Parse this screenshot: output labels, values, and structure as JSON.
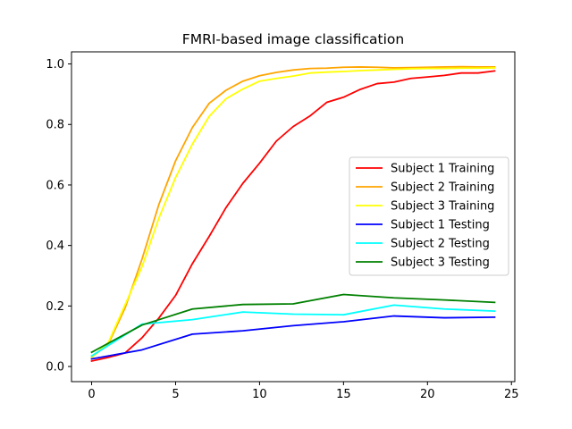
{
  "chart_data": {
    "type": "line",
    "title": "FMRI-based image classification",
    "xlabel": "",
    "ylabel": "",
    "xlim": [
      -1.2,
      25.2
    ],
    "ylim": [
      -0.05,
      1.04
    ],
    "xticks": [
      0,
      5,
      10,
      15,
      20,
      25
    ],
    "yticks": [
      0.0,
      0.2,
      0.4,
      0.6,
      0.8,
      1.0
    ],
    "xtick_labels": [
      "0",
      "5",
      "10",
      "15",
      "20",
      "25"
    ],
    "ytick_labels": [
      "0.0",
      "0.2",
      "0.4",
      "0.6",
      "0.8",
      "1.0"
    ],
    "grid": false,
    "legend_position": "center-right",
    "series": [
      {
        "name": "Subject 1 Training",
        "color": "#ff0000",
        "x": [
          0,
          1,
          2,
          3,
          4,
          5,
          6,
          7,
          8,
          9,
          10,
          11,
          12,
          13,
          14,
          15,
          16,
          17,
          18,
          19,
          20,
          21,
          22,
          23,
          24
        ],
        "y": [
          0.018,
          0.03,
          0.045,
          0.095,
          0.16,
          0.235,
          0.34,
          0.43,
          0.525,
          0.605,
          0.672,
          0.745,
          0.793,
          0.828,
          0.873,
          0.89,
          0.916,
          0.935,
          0.94,
          0.952,
          0.957,
          0.962,
          0.97,
          0.97,
          0.977
        ]
      },
      {
        "name": "Subject 2 Training",
        "color": "#ffa500",
        "x": [
          0,
          1,
          2,
          3,
          4,
          5,
          6,
          7,
          8,
          9,
          10,
          11,
          12,
          13,
          14,
          15,
          16,
          17,
          18,
          19,
          20,
          21,
          22,
          23,
          24
        ],
        "y": [
          0.03,
          0.075,
          0.195,
          0.355,
          0.535,
          0.68,
          0.79,
          0.87,
          0.913,
          0.943,
          0.961,
          0.972,
          0.98,
          0.985,
          0.986,
          0.989,
          0.99,
          0.989,
          0.987,
          0.988,
          0.989,
          0.99,
          0.991,
          0.99,
          0.99
        ]
      },
      {
        "name": "Subject 3 Training",
        "color": "#ffff00",
        "x": [
          0,
          1,
          2,
          3,
          4,
          5,
          6,
          7,
          8,
          9,
          10,
          11,
          12,
          13,
          14,
          15,
          16,
          17,
          18,
          19,
          20,
          21,
          22,
          23,
          24
        ],
        "y": [
          0.03,
          0.08,
          0.205,
          0.33,
          0.49,
          0.625,
          0.735,
          0.827,
          0.885,
          0.917,
          0.943,
          0.952,
          0.96,
          0.97,
          0.973,
          0.975,
          0.978,
          0.98,
          0.982,
          0.984,
          0.985,
          0.985,
          0.986,
          0.986,
          0.987
        ]
      },
      {
        "name": "Subject 1 Testing",
        "color": "#0000ff",
        "x": [
          0,
          3,
          6,
          9,
          12,
          15,
          18,
          21,
          24
        ],
        "y": [
          0.025,
          0.055,
          0.107,
          0.118,
          0.135,
          0.148,
          0.167,
          0.161,
          0.163
        ]
      },
      {
        "name": "Subject 2 Testing",
        "color": "#00ffff",
        "x": [
          0,
          3,
          6,
          9,
          12,
          15,
          18,
          21,
          24
        ],
        "y": [
          0.035,
          0.14,
          0.155,
          0.18,
          0.173,
          0.171,
          0.203,
          0.19,
          0.183
        ]
      },
      {
        "name": "Subject 3 Testing",
        "color": "#008000",
        "x": [
          0,
          3,
          6,
          9,
          12,
          15,
          18,
          21,
          24
        ],
        "y": [
          0.047,
          0.137,
          0.19,
          0.205,
          0.207,
          0.238,
          0.227,
          0.22,
          0.212
        ]
      }
    ]
  }
}
